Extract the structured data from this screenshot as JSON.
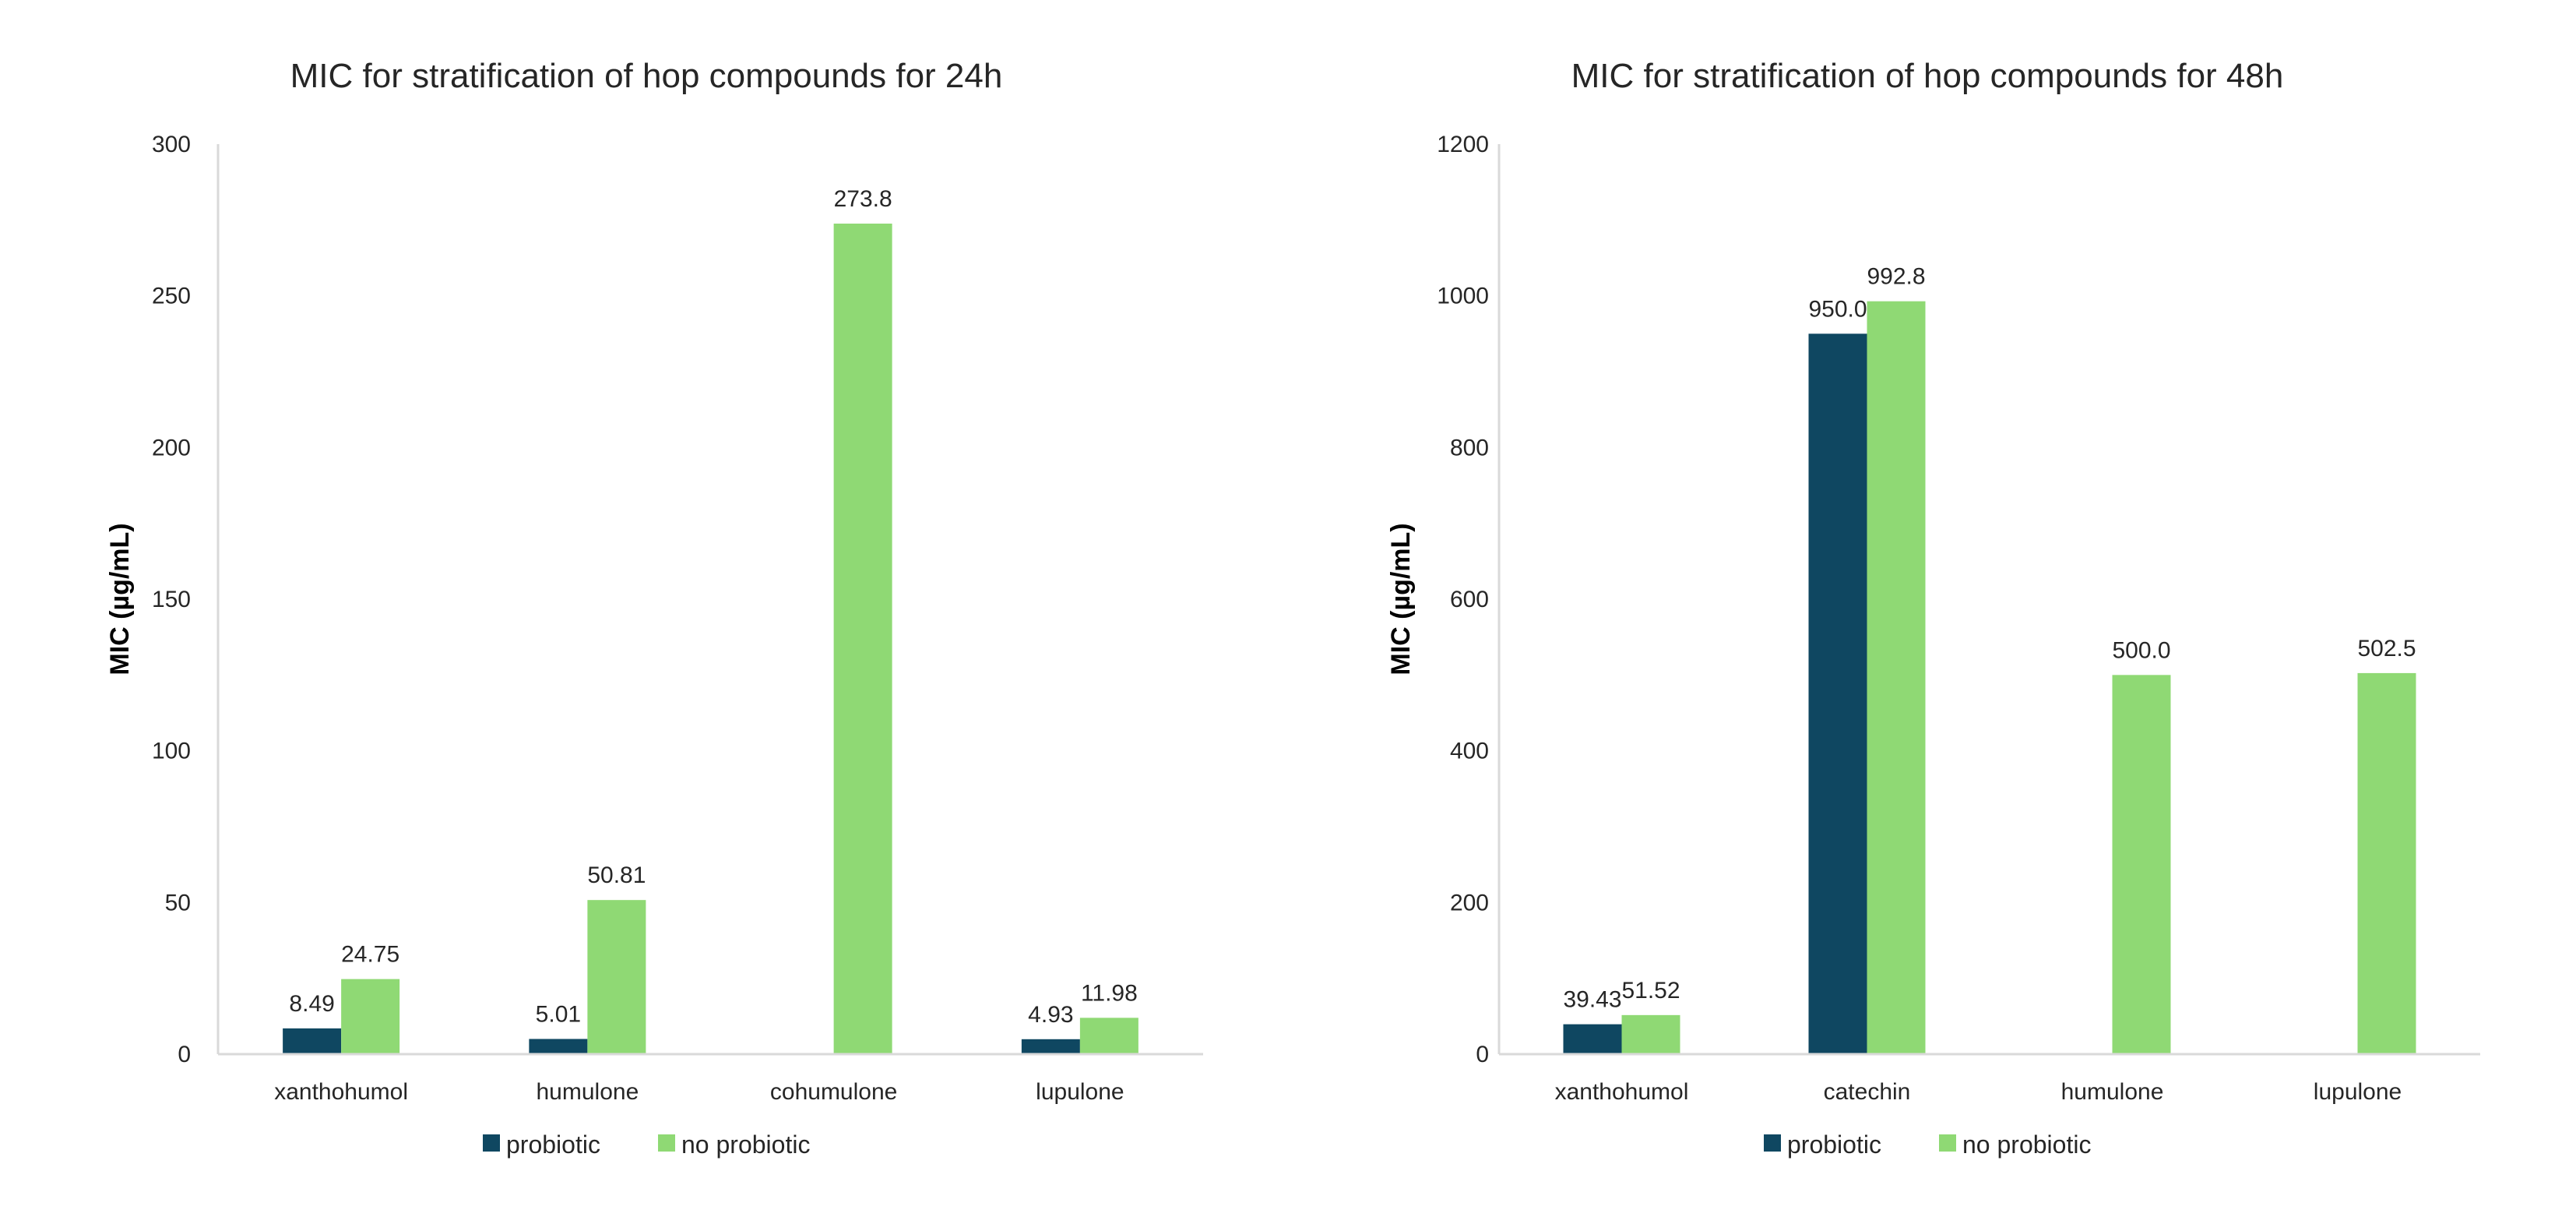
{
  "colors": {
    "probiotic": "#0f4761",
    "no_probiotic": "#8fd974",
    "axis": "#d9d9d9",
    "text": "#262626"
  },
  "chart_data": [
    {
      "type": "bar",
      "title": "MIC for stratification of hop compounds for 24h",
      "ylabel": "MIC  (µg/mL)",
      "xlabel": "",
      "ylim": [
        0,
        300
      ],
      "yticks": [
        0,
        50,
        100,
        150,
        200,
        250,
        300
      ],
      "categories": [
        "xanthohumol",
        "humulone",
        "cohumulone",
        "lupulone"
      ],
      "series": [
        {
          "name": "probiotic",
          "values": [
            8.49,
            5.01,
            null,
            4.93
          ],
          "labels": [
            "8.49",
            "5.01",
            null,
            "4.93"
          ]
        },
        {
          "name": "no probiotic",
          "values": [
            24.75,
            50.81,
            273.8,
            11.98
          ],
          "labels": [
            "24.75",
            "50.81",
            "273.8",
            "11.98"
          ]
        }
      ],
      "legend": "bottom"
    },
    {
      "type": "bar",
      "title": "MIC for stratification of hop compounds for 48h",
      "ylabel": "MIC  (µg/mL)",
      "xlabel": "",
      "ylim": [
        0,
        1200
      ],
      "yticks": [
        0,
        200,
        400,
        600,
        800,
        1000,
        1200
      ],
      "categories": [
        "xanthohumol",
        "catechin",
        "humulone",
        "lupulone"
      ],
      "series": [
        {
          "name": "probiotic",
          "values": [
            39.43,
            950.0,
            null,
            null
          ],
          "labels": [
            "39.43",
            "950.0",
            null,
            null
          ]
        },
        {
          "name": "no probiotic",
          "values": [
            51.52,
            992.8,
            500.0,
            502.5
          ],
          "labels": [
            "51.52",
            "992.8",
            "500.0",
            "502.5"
          ]
        }
      ],
      "legend": "bottom"
    }
  ]
}
